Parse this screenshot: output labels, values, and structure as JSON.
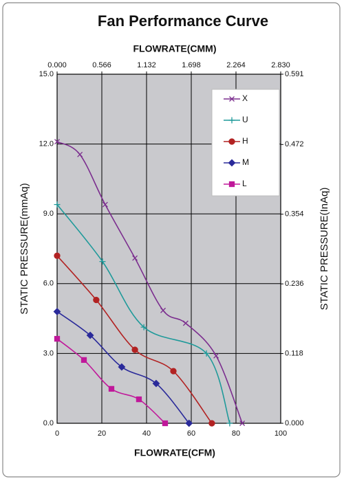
{
  "chart_data": {
    "type": "line",
    "title": "Fan Performance Curve",
    "xlabel": "FLOWRATE(CFM)",
    "x2label": "FLOWRATE(CMM)",
    "ylabel": "STATIC PRESSURE(mmAq)",
    "y2label": "STATIC PRESSURE(InAq)",
    "xlim": [
      0,
      100
    ],
    "xticks": [
      0,
      20,
      40,
      60,
      80,
      100
    ],
    "x2lim": [
      0,
      2.83
    ],
    "x2ticks": [
      {
        "value": 0,
        "label": "0.000"
      },
      {
        "value": 0.566,
        "label": "0.566"
      },
      {
        "value": 1.132,
        "label": "1.132"
      },
      {
        "value": 1.698,
        "label": "1.698"
      },
      {
        "value": 2.264,
        "label": "2.264"
      },
      {
        "value": 2.83,
        "label": "2.830"
      }
    ],
    "ylim": [
      0,
      15
    ],
    "yticks": [
      {
        "value": 0,
        "label": "0.0"
      },
      {
        "value": 3,
        "label": "3.0"
      },
      {
        "value": 6,
        "label": "6.0"
      },
      {
        "value": 9,
        "label": "9.0"
      },
      {
        "value": 12,
        "label": "12.0"
      },
      {
        "value": 15,
        "label": "15.0"
      }
    ],
    "y2lim": [
      0,
      0.591
    ],
    "y2ticks": [
      {
        "value": 0,
        "label": "0.000"
      },
      {
        "value": 0.118,
        "label": "0.118"
      },
      {
        "value": 0.236,
        "label": "0.236"
      },
      {
        "value": 0.354,
        "label": "0.354"
      },
      {
        "value": 0.472,
        "label": "0.472"
      },
      {
        "value": 0.591,
        "label": "0.591"
      }
    ],
    "grid": true,
    "legend": "top-right",
    "series": [
      {
        "name": "X",
        "color": "#7b2d8e",
        "marker": "x",
        "x": [
          0,
          10.2,
          21.5,
          34.8,
          47.4,
          57.5,
          71.1,
          82.8
        ],
        "values": [
          12.1,
          11.55,
          9.4,
          7.1,
          4.85,
          4.3,
          2.9,
          0
        ]
      },
      {
        "name": "U",
        "color": "#1f9a9a",
        "marker": "plus",
        "x": [
          0,
          20.3,
          38.8,
          66.8,
          77.2
        ],
        "values": [
          9.4,
          6.95,
          4.13,
          3.0,
          0
        ]
      },
      {
        "name": "H",
        "color": "#b22222",
        "marker": "circle",
        "x": [
          0,
          17.5,
          34.8,
          52,
          69.2
        ],
        "values": [
          7.2,
          5.3,
          3.16,
          2.24,
          0
        ]
      },
      {
        "name": "M",
        "color": "#2a2a9a",
        "marker": "diamond",
        "x": [
          0,
          14.8,
          28.9,
          44.3,
          59
        ],
        "values": [
          4.8,
          3.78,
          2.42,
          1.71,
          0
        ]
      },
      {
        "name": "L",
        "color": "#c0189a",
        "marker": "square",
        "x": [
          0,
          12,
          24.3,
          36.6,
          48.3
        ],
        "values": [
          3.63,
          2.72,
          1.48,
          1.03,
          0
        ]
      }
    ]
  }
}
